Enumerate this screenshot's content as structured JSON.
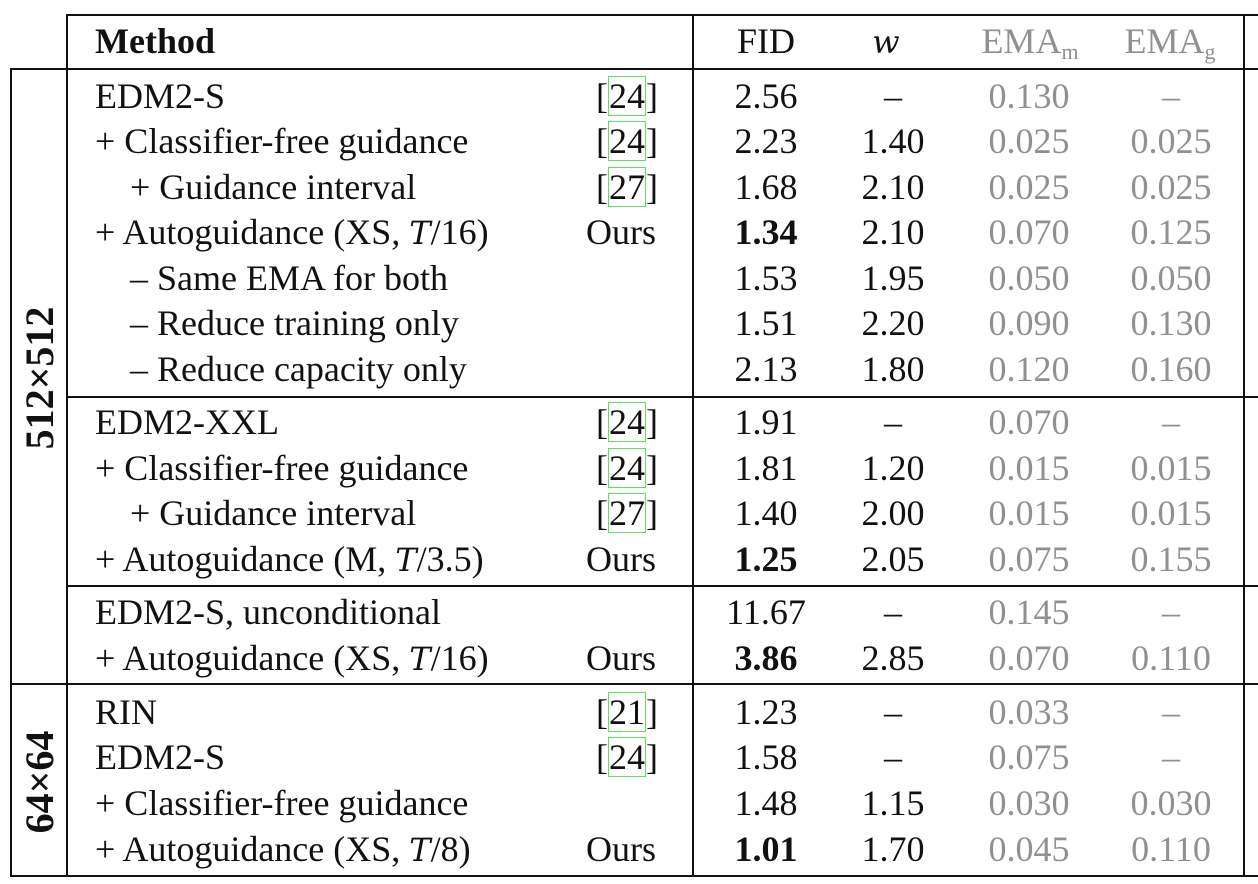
{
  "header": {
    "method": "Method",
    "fid": "FID",
    "w": "w",
    "ema_m_base": "EMA",
    "ema_m_sub": "m",
    "ema_g_base": "EMA",
    "ema_g_sub": "g"
  },
  "side_labels": {
    "res512": "512×512",
    "res64": "64×64"
  },
  "rows": [
    {
      "method": "EDM2-S",
      "cite": "24",
      "ours": "",
      "fid": "2.56",
      "fid_bold": false,
      "w": "–",
      "ema_m": "0.130",
      "ema_g": "–",
      "indent": 0
    },
    {
      "method": "+ Classifier-free guidance",
      "cite": "24",
      "ours": "",
      "fid": "2.23",
      "fid_bold": false,
      "w": "1.40",
      "ema_m": "0.025",
      "ema_g": "0.025",
      "indent": 0
    },
    {
      "method": "+ Guidance interval",
      "cite": "27",
      "ours": "",
      "fid": "1.68",
      "fid_bold": false,
      "w": "2.10",
      "ema_m": "0.025",
      "ema_g": "0.025",
      "indent": 1
    },
    {
      "method": "+ Autoguidance (XS, ",
      "method_math": "T",
      "method_tail": "/16)",
      "cite": "",
      "ours": "Ours",
      "fid": "1.34",
      "fid_bold": true,
      "w": "2.10",
      "ema_m": "0.070",
      "ema_g": "0.125",
      "indent": 0
    },
    {
      "method": "– Same EMA for both",
      "cite": "",
      "ours": "",
      "fid": "1.53",
      "fid_bold": false,
      "w": "1.95",
      "ema_m": "0.050",
      "ema_g": "0.050",
      "indent": 1
    },
    {
      "method": "– Reduce training only",
      "cite": "",
      "ours": "",
      "fid": "1.51",
      "fid_bold": false,
      "w": "2.20",
      "ema_m": "0.090",
      "ema_g": "0.130",
      "indent": 1
    },
    {
      "method": "– Reduce capacity only",
      "cite": "",
      "ours": "",
      "fid": "2.13",
      "fid_bold": false,
      "w": "1.80",
      "ema_m": "0.120",
      "ema_g": "0.160",
      "indent": 1
    },
    {
      "method": "EDM2-XXL",
      "cite": "24",
      "ours": "",
      "fid": "1.91",
      "fid_bold": false,
      "w": "–",
      "ema_m": "0.070",
      "ema_g": "–",
      "indent": 0
    },
    {
      "method": "+ Classifier-free guidance",
      "cite": "24",
      "ours": "",
      "fid": "1.81",
      "fid_bold": false,
      "w": "1.20",
      "ema_m": "0.015",
      "ema_g": "0.015",
      "indent": 0
    },
    {
      "method": "+ Guidance interval",
      "cite": "27",
      "ours": "",
      "fid": "1.40",
      "fid_bold": false,
      "w": "2.00",
      "ema_m": "0.015",
      "ema_g": "0.015",
      "indent": 1
    },
    {
      "method": "+ Autoguidance (M, ",
      "method_math": "T",
      "method_tail": "/3.5)",
      "cite": "",
      "ours": "Ours",
      "fid": "1.25",
      "fid_bold": true,
      "w": "2.05",
      "ema_m": "0.075",
      "ema_g": "0.155",
      "indent": 0
    },
    {
      "method": "EDM2-S, unconditional",
      "cite": "",
      "ours": "",
      "fid": "11.67",
      "fid_bold": false,
      "w": "–",
      "ema_m": "0.145",
      "ema_g": "–",
      "indent": 0
    },
    {
      "method": "+ Autoguidance (XS, ",
      "method_math": "T",
      "method_tail": "/16)",
      "cite": "",
      "ours": "Ours",
      "fid": "3.86",
      "fid_bold": true,
      "w": "2.85",
      "ema_m": "0.070",
      "ema_g": "0.110",
      "indent": 0
    },
    {
      "method": "RIN",
      "cite": "21",
      "ours": "",
      "fid": "1.23",
      "fid_bold": false,
      "w": "–",
      "ema_m": "0.033",
      "ema_g": "–",
      "indent": 0
    },
    {
      "method": "EDM2-S",
      "cite": "24",
      "ours": "",
      "fid": "1.58",
      "fid_bold": false,
      "w": "–",
      "ema_m": "0.075",
      "ema_g": "–",
      "indent": 0
    },
    {
      "method": "+ Classifier-free guidance",
      "cite": "",
      "ours": "",
      "fid": "1.48",
      "fid_bold": false,
      "w": "1.15",
      "ema_m": "0.030",
      "ema_g": "0.030",
      "indent": 0
    },
    {
      "method": "+ Autoguidance (XS, ",
      "method_math": "T",
      "method_tail": "/8)",
      "cite": "",
      "ours": "Ours",
      "fid": "1.01",
      "fid_bold": true,
      "w": "1.70",
      "ema_m": "0.045",
      "ema_g": "0.110",
      "indent": 0
    }
  ]
}
